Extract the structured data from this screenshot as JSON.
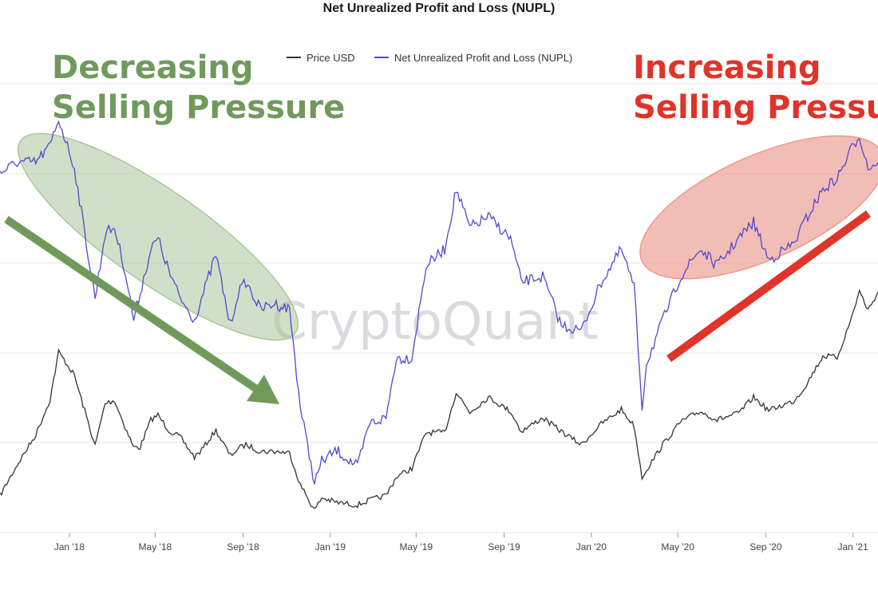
{
  "chart_data": {
    "type": "line",
    "title": "Net Unrealized Profit and Loss (NUPL)",
    "watermark": "CryptoQuant",
    "legend": {
      "placement": "top-center",
      "entries": [
        "Price USD",
        "Net Unrealized Profit and Loss (NUPL)"
      ]
    },
    "x_tick_labels": [
      "Jan '18",
      "May '18",
      "Sep '18",
      "Jan '19",
      "May '19",
      "Sep '19",
      "Jan '20",
      "May '20",
      "Sep '20",
      "Jan '21"
    ],
    "grid": true,
    "colors": {
      "price": "#333333",
      "nupl": "#5148cf",
      "green": "#6f9a5c",
      "red": "#e0332a"
    },
    "series": [
      {
        "name": "Net Unrealized Profit and Loss (NUPL)",
        "color": "#5148cf",
        "points": [
          [
            "2017-09-26",
            0.48
          ],
          [
            "2017-10-20",
            0.5
          ],
          [
            "2017-11-15",
            0.5
          ],
          [
            "2017-12-05",
            0.53
          ],
          [
            "2017-12-17",
            0.58
          ],
          [
            "2018-01-08",
            0.49
          ],
          [
            "2018-02-06",
            0.25
          ],
          [
            "2018-02-20",
            0.37
          ],
          [
            "2018-03-05",
            0.38
          ],
          [
            "2018-03-20",
            0.3
          ],
          [
            "2018-04-01",
            0.21
          ],
          [
            "2018-04-10",
            0.26
          ],
          [
            "2018-04-25",
            0.34
          ],
          [
            "2018-05-05",
            0.36
          ],
          [
            "2018-05-20",
            0.3
          ],
          [
            "2018-06-05",
            0.25
          ],
          [
            "2018-06-25",
            0.21
          ],
          [
            "2018-07-05",
            0.25
          ],
          [
            "2018-07-25",
            0.33
          ],
          [
            "2018-08-14",
            0.2
          ],
          [
            "2018-08-25",
            0.26
          ],
          [
            "2018-09-05",
            0.28
          ],
          [
            "2018-09-25",
            0.23
          ],
          [
            "2018-10-15",
            0.24
          ],
          [
            "2018-11-05",
            0.23
          ],
          [
            "2018-11-20",
            0.05
          ],
          [
            "2018-12-10",
            -0.09
          ],
          [
            "2018-12-20",
            -0.05
          ],
          [
            "2019-01-10",
            -0.03
          ],
          [
            "2019-02-08",
            -0.06
          ],
          [
            "2019-02-25",
            0.02
          ],
          [
            "2019-03-20",
            0.03
          ],
          [
            "2019-04-03",
            0.14
          ],
          [
            "2019-04-25",
            0.14
          ],
          [
            "2019-05-15",
            0.31
          ],
          [
            "2019-06-10",
            0.34
          ],
          [
            "2019-06-26",
            0.45
          ],
          [
            "2019-07-15",
            0.38
          ],
          [
            "2019-08-10",
            0.4
          ],
          [
            "2019-09-10",
            0.36
          ],
          [
            "2019-09-25",
            0.28
          ],
          [
            "2019-10-25",
            0.29
          ],
          [
            "2019-11-20",
            0.2
          ],
          [
            "2019-12-18",
            0.19
          ],
          [
            "2020-01-15",
            0.28
          ],
          [
            "2020-02-12",
            0.34
          ],
          [
            "2020-03-01",
            0.27
          ],
          [
            "2020-03-12",
            0.05
          ],
          [
            "2020-03-18",
            0.13
          ],
          [
            "2020-04-10",
            0.21
          ],
          [
            "2020-05-05",
            0.29
          ],
          [
            "2020-06-01",
            0.34
          ],
          [
            "2020-06-25",
            0.31
          ],
          [
            "2020-07-25",
            0.36
          ],
          [
            "2020-08-15",
            0.39
          ],
          [
            "2020-09-05",
            0.32
          ],
          [
            "2020-10-10",
            0.35
          ],
          [
            "2020-10-25",
            0.39
          ],
          [
            "2020-11-20",
            0.45
          ],
          [
            "2020-12-10",
            0.47
          ],
          [
            "2020-12-28",
            0.52
          ],
          [
            "2021-01-10",
            0.55
          ],
          [
            "2021-01-22",
            0.49
          ],
          [
            "2021-02-05",
            0.5
          ]
        ]
      },
      {
        "name": "Price USD",
        "color": "#333333",
        "points": [
          [
            "2017-09-26",
            4000
          ],
          [
            "2017-10-20",
            5600
          ],
          [
            "2017-11-15",
            7800
          ],
          [
            "2017-12-05",
            11500
          ],
          [
            "2017-12-17",
            19500
          ],
          [
            "2018-01-08",
            15000
          ],
          [
            "2018-02-06",
            6900
          ],
          [
            "2018-02-20",
            11000
          ],
          [
            "2018-03-05",
            11400
          ],
          [
            "2018-03-20",
            8500
          ],
          [
            "2018-04-01",
            6800
          ],
          [
            "2018-04-10",
            6800
          ],
          [
            "2018-04-25",
            9200
          ],
          [
            "2018-05-05",
            9700
          ],
          [
            "2018-05-20",
            8200
          ],
          [
            "2018-06-05",
            7600
          ],
          [
            "2018-06-25",
            6100
          ],
          [
            "2018-07-05",
            6600
          ],
          [
            "2018-07-25",
            8200
          ],
          [
            "2018-08-14",
            6200
          ],
          [
            "2018-08-25",
            6700
          ],
          [
            "2018-09-05",
            7000
          ],
          [
            "2018-09-25",
            6500
          ],
          [
            "2018-10-15",
            6500
          ],
          [
            "2018-11-05",
            6400
          ],
          [
            "2018-11-20",
            4500
          ],
          [
            "2018-12-10",
            3400
          ],
          [
            "2018-12-20",
            3900
          ],
          [
            "2019-01-10",
            3700
          ],
          [
            "2019-02-08",
            3600
          ],
          [
            "2019-02-25",
            3800
          ],
          [
            "2019-03-20",
            4000
          ],
          [
            "2019-04-03",
            4900
          ],
          [
            "2019-04-25",
            5400
          ],
          [
            "2019-05-15",
            8000
          ],
          [
            "2019-06-10",
            8000
          ],
          [
            "2019-06-26",
            12500
          ],
          [
            "2019-07-15",
            10000
          ],
          [
            "2019-08-10",
            11800
          ],
          [
            "2019-09-10",
            10100
          ],
          [
            "2019-09-25",
            8100
          ],
          [
            "2019-10-25",
            9400
          ],
          [
            "2019-11-20",
            8100
          ],
          [
            "2019-12-18",
            7000
          ],
          [
            "2020-01-15",
            8800
          ],
          [
            "2020-02-12",
            10300
          ],
          [
            "2020-03-01",
            8600
          ],
          [
            "2020-03-12",
            4900
          ],
          [
            "2020-03-18",
            5300
          ],
          [
            "2020-04-10",
            7000
          ],
          [
            "2020-05-05",
            9000
          ],
          [
            "2020-06-01",
            10100
          ],
          [
            "2020-06-25",
            9200
          ],
          [
            "2020-07-25",
            9900
          ],
          [
            "2020-08-15",
            11800
          ],
          [
            "2020-09-05",
            10200
          ],
          [
            "2020-10-10",
            11300
          ],
          [
            "2020-10-25",
            13100
          ],
          [
            "2020-11-20",
            18600
          ],
          [
            "2020-12-10",
            18300
          ],
          [
            "2020-12-28",
            27000
          ],
          [
            "2021-01-10",
            38000
          ],
          [
            "2021-01-22",
            30800
          ],
          [
            "2021-02-05",
            37500
          ]
        ]
      }
    ],
    "annotations": [
      {
        "text_lines": [
          "Decreasing",
          "Selling Pressure"
        ],
        "color": "#6f9a5c",
        "shape": "ellipse",
        "arrow": "down-right"
      },
      {
        "text_lines": [
          "Increasing",
          "Selling Pressure"
        ],
        "color": "#e0332a",
        "shape": "ellipse",
        "arrow": "up-right"
      }
    ]
  }
}
